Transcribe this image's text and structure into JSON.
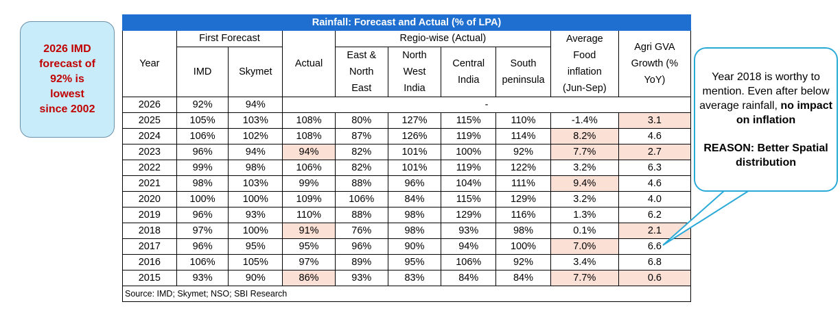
{
  "left_note": "2026 IMD\nforecast of\n92% is\nlowest\nsince 2002",
  "table": {
    "title": "Rainfall: Forecast and Actual (% of LPA)",
    "headers": {
      "year": "Year",
      "first_forecast": "First Forecast",
      "imd": "IMD",
      "skymet": "Skymet",
      "actual": "Actual",
      "regio_wise": "Regio-wise (Actual)",
      "east_north_east": "East &\nNorth\nEast",
      "north_west_india": "North\nWest\nIndia",
      "central_india": "Central\nIndia",
      "south_peninsula": "South\npeninsula",
      "food_inflation": "Average\nFood\ninflation\n(Jun-Sep)",
      "agri_gva": "Agri GVA\nGrowth (%\nYoY)"
    },
    "row_2026": {
      "year": "2026",
      "imd": "92%",
      "skymet": "94%",
      "merged": "-"
    },
    "rows": [
      {
        "year": "2025",
        "imd": "105%",
        "skymet": "103%",
        "actual": "108%",
        "ene": "80%",
        "nwi": "127%",
        "ci": "115%",
        "sp": "110%",
        "food": "-1.4%",
        "agri": "3.1"
      },
      {
        "year": "2024",
        "imd": "106%",
        "skymet": "102%",
        "actual": "108%",
        "ene": "87%",
        "nwi": "126%",
        "ci": "119%",
        "sp": "114%",
        "food": "8.2%",
        "agri": "4.6"
      },
      {
        "year": "2023",
        "imd": "96%",
        "skymet": "94%",
        "actual": "94%",
        "ene": "82%",
        "nwi": "101%",
        "ci": "100%",
        "sp": "92%",
        "food": "7.7%",
        "agri": "2.7"
      },
      {
        "year": "2022",
        "imd": "99%",
        "skymet": "98%",
        "actual": "106%",
        "ene": "82%",
        "nwi": "101%",
        "ci": "119%",
        "sp": "122%",
        "food": "3.2%",
        "agri": "6.3"
      },
      {
        "year": "2021",
        "imd": "98%",
        "skymet": "103%",
        "actual": "99%",
        "ene": "88%",
        "nwi": "96%",
        "ci": "104%",
        "sp": "111%",
        "food": "9.4%",
        "agri": "4.6"
      },
      {
        "year": "2020",
        "imd": "100%",
        "skymet": "100%",
        "actual": "109%",
        "ene": "106%",
        "nwi": "84%",
        "ci": "115%",
        "sp": "129%",
        "food": "3.2%",
        "agri": "4.0"
      },
      {
        "year": "2019",
        "imd": "96%",
        "skymet": "93%",
        "actual": "110%",
        "ene": "88%",
        "nwi": "98%",
        "ci": "129%",
        "sp": "116%",
        "food": "1.3%",
        "agri": "6.2"
      },
      {
        "year": "2018",
        "imd": "97%",
        "skymet": "100%",
        "actual": "91%",
        "ene": "76%",
        "nwi": "98%",
        "ci": "93%",
        "sp": "98%",
        "food": "0.1%",
        "agri": "2.1"
      },
      {
        "year": "2017",
        "imd": "96%",
        "skymet": "95%",
        "actual": "95%",
        "ene": "96%",
        "nwi": "90%",
        "ci": "94%",
        "sp": "100%",
        "food": "7.0%",
        "agri": "6.6"
      },
      {
        "year": "2016",
        "imd": "106%",
        "skymet": "105%",
        "actual": "97%",
        "ene": "89%",
        "nwi": "95%",
        "ci": "106%",
        "sp": "92%",
        "food": "3.4%",
        "agri": "6.8"
      },
      {
        "year": "2015",
        "imd": "93%",
        "skymet": "90%",
        "actual": "86%",
        "ene": "93%",
        "nwi": "83%",
        "ci": "84%",
        "sp": "84%",
        "food": "7.7%",
        "agri": "0.6"
      }
    ],
    "source": "Source: IMD; Skymet; NSO; SBI Research"
  },
  "right_note": {
    "line1": "Year 2018 is worthy to mention. Even after below average rainfall,",
    "line1_bold": "no impact on inflation",
    "line2": "REASON: Better Spatial distribution"
  },
  "colors": {
    "title_bg": "#1f6fd0",
    "highlight": "#fbe0d5",
    "left_note_text": "#c00000",
    "left_note_bg": "#c9ecfb",
    "callout_border": "#29a9d8"
  }
}
